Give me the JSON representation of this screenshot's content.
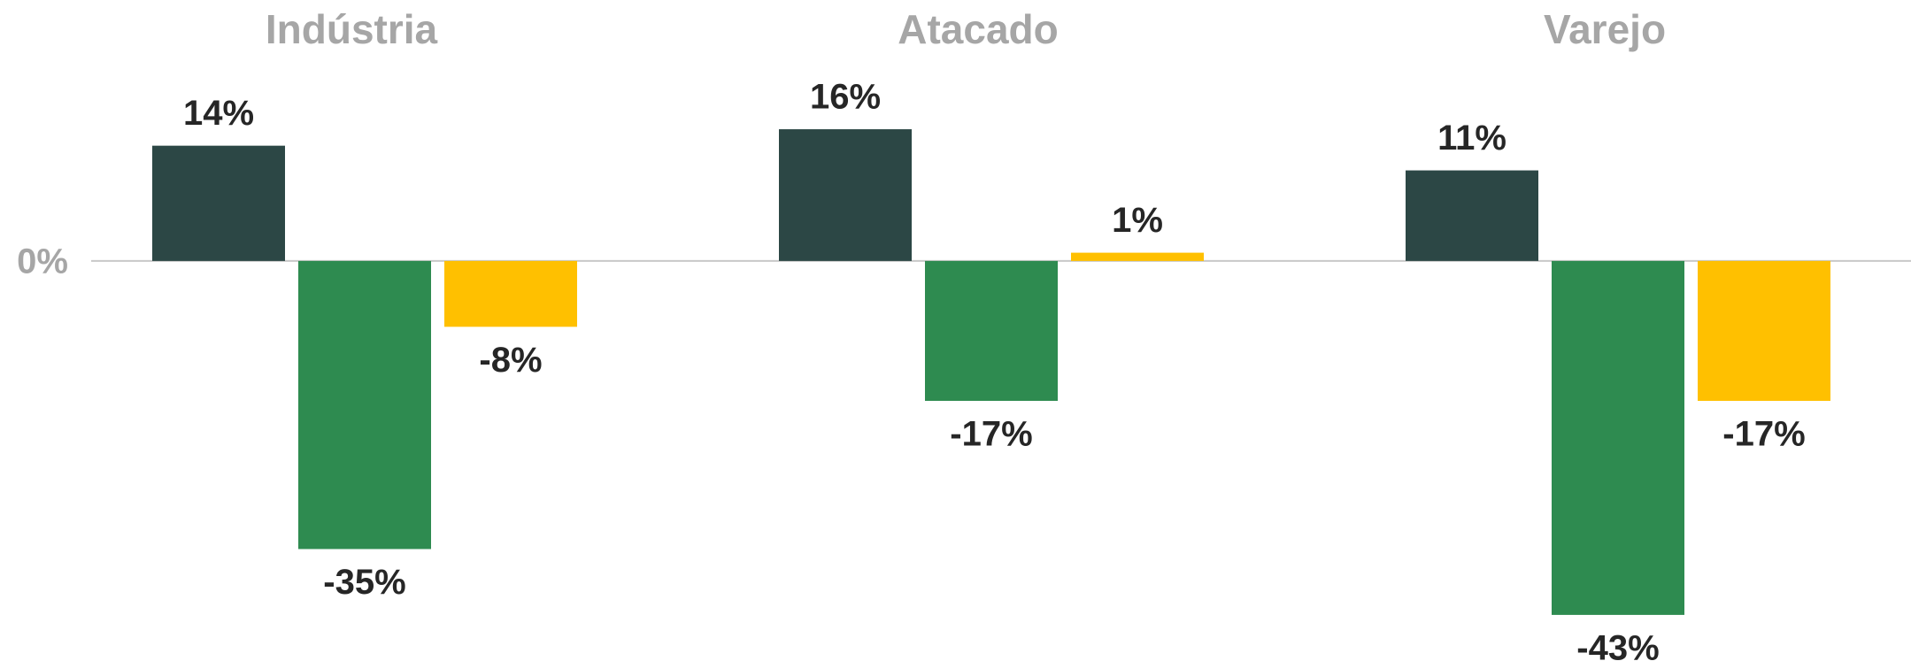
{
  "chart_data": {
    "type": "bar",
    "categories": [
      "Indústria",
      "Atacado",
      "Varejo"
    ],
    "series": [
      {
        "color": "#2c4745",
        "values": [
          14,
          16,
          11
        ],
        "value_labels": [
          "14%",
          "16%",
          "11%"
        ]
      },
      {
        "color": "#2e8b50",
        "values": [
          -35,
          -17,
          -43
        ],
        "value_labels": [
          "-35%",
          "-17%",
          "-43%"
        ]
      },
      {
        "color": "#ffc000",
        "values": [
          -8,
          1,
          -17
        ],
        "value_labels": [
          "-8%",
          "1%",
          "-17%"
        ]
      }
    ],
    "ylim": [
      -48.6,
      31.7
    ],
    "yticks": [
      {
        "value": 0,
        "label": "0%"
      }
    ]
  }
}
